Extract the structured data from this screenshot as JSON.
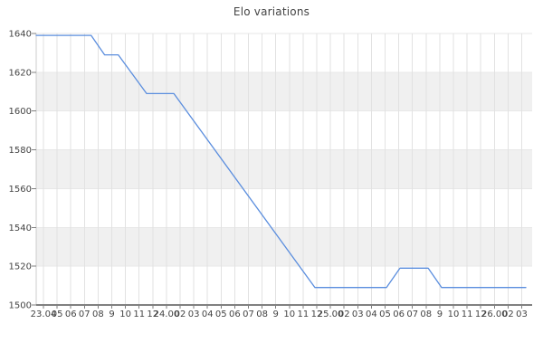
{
  "chart_data": {
    "type": "line",
    "title": "Elo variations",
    "xlabel": "",
    "ylabel": "",
    "ylim": [
      1500,
      1640
    ],
    "yticks": [
      1500,
      1520,
      1540,
      1560,
      1580,
      1600,
      1620,
      1640
    ],
    "xtick_labels": [
      "23.04",
      "05",
      "06",
      "07",
      "08",
      "9",
      "10",
      "11",
      "12",
      "24.00",
      "02",
      "03",
      "04",
      "05",
      "06",
      "07",
      "08",
      "9",
      "10",
      "11",
      "12",
      "25.00",
      "02",
      "03",
      "04",
      "05",
      "06",
      "07",
      "08",
      "9",
      "10",
      "11",
      "12",
      "26.00",
      "02",
      "03"
    ],
    "x_unit_note": "t = x-axis tick index units (0 = tick labeled 23.04); time axis, vertices may fall between ticks",
    "grid": true,
    "legend": "none",
    "shaded_bands_elo": [
      [
        1520,
        1540
      ],
      [
        1560,
        1580
      ],
      [
        1600,
        1620
      ]
    ],
    "series": [
      {
        "name": "Elo",
        "color": "#5b8ede",
        "points": [
          {
            "t": -0.53,
            "elo": 1639
          },
          {
            "t": 3.49,
            "elo": 1639
          },
          {
            "t": 4.48,
            "elo": 1629
          },
          {
            "t": 5.48,
            "elo": 1629
          },
          {
            "t": 7.55,
            "elo": 1609
          },
          {
            "t": 9.54,
            "elo": 1609
          },
          {
            "t": 19.87,
            "elo": 1509
          },
          {
            "t": 25.1,
            "elo": 1509
          },
          {
            "t": 26.09,
            "elo": 1519
          },
          {
            "t": 28.15,
            "elo": 1519
          },
          {
            "t": 29.14,
            "elo": 1509
          },
          {
            "t": 35.3,
            "elo": 1509
          }
        ]
      }
    ],
    "colors": {
      "background": "#ffffff",
      "band_fill": "#f0f0f0",
      "gridline": "#e2e2e2",
      "h_gridline": "#e7e7e7",
      "left_spine": "#cccccc",
      "bottom_spine": "#808080",
      "tick_mark": "#808080",
      "tick_label": "#444444",
      "title": "#444444",
      "line": "#5b8ede"
    }
  }
}
